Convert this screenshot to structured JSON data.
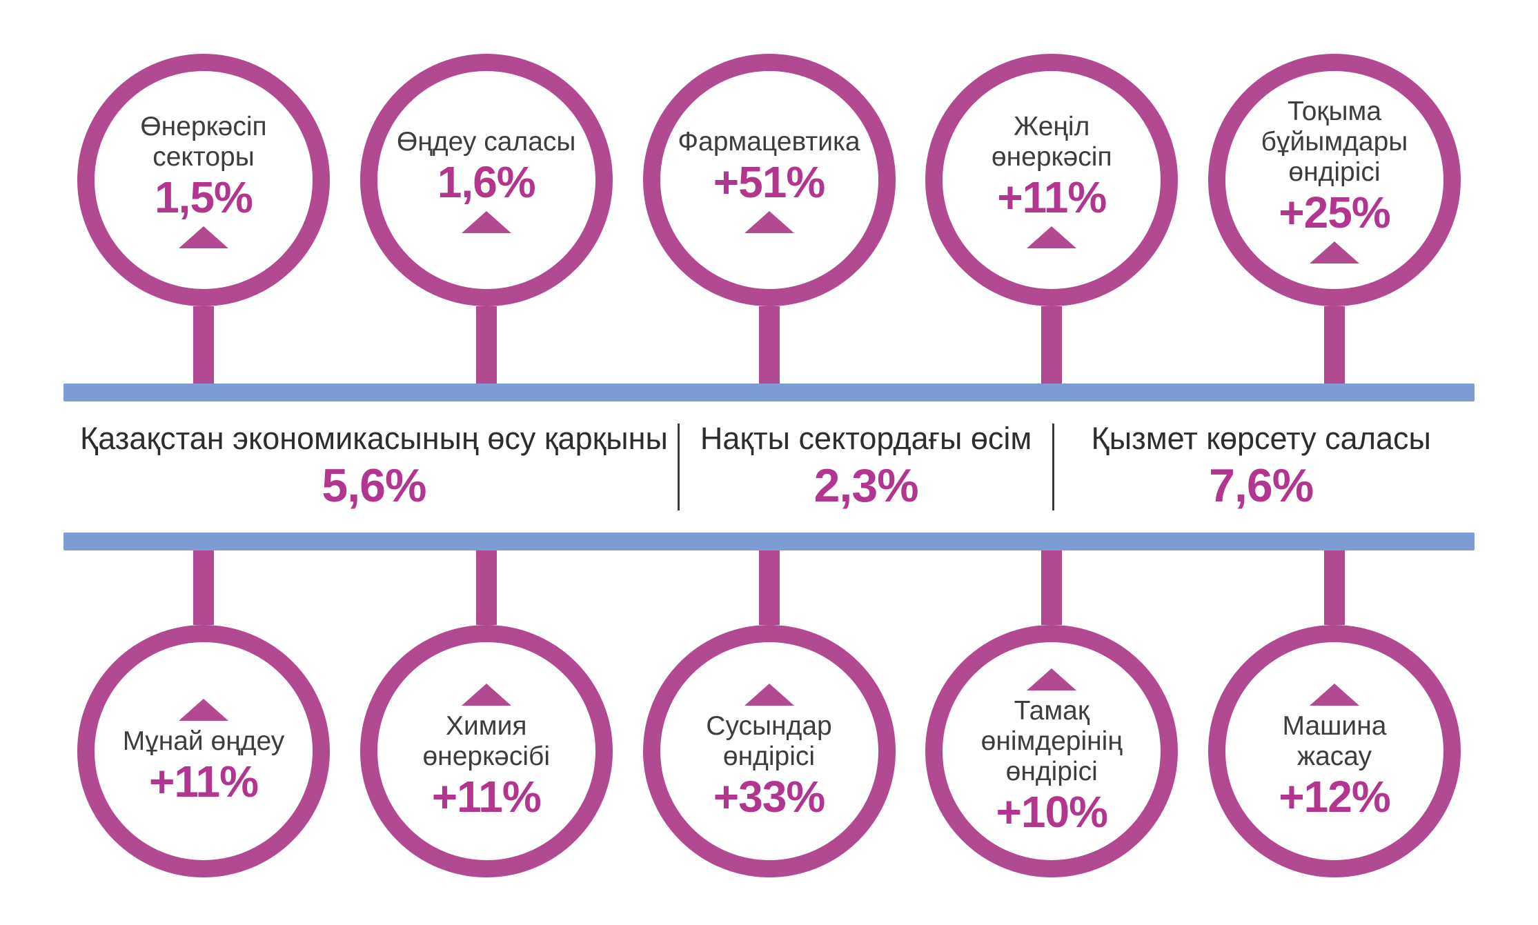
{
  "colors": {
    "accent_magenta": "#b14a90",
    "number_magenta": "#b2368e",
    "bar_blue": "#7e9cd4",
    "label_dark": "#3d3d3d"
  },
  "top_row": [
    {
      "label": "Өнеркәсіп секторы",
      "value": "1,5%"
    },
    {
      "label": "Өңдеу саласы",
      "value": "1,6%"
    },
    {
      "label": "Фармацевтика",
      "value": "+51%"
    },
    {
      "label": "Жеңіл өнеркәсіп",
      "value": "+11%"
    },
    {
      "label": "Тоқыма бұйымдары өндірісі",
      "value": "+25%"
    }
  ],
  "middle": [
    {
      "label": "Қазақстан экономикасының өсу қарқыны",
      "value": "5,6%"
    },
    {
      "label": "Нақты сектордағы өсім",
      "value": "2,3%"
    },
    {
      "label": "Қызмет көрсету саласы",
      "value": "7,6%"
    }
  ],
  "bottom_row": [
    {
      "label": "Мұнай өңдеу",
      "value": "+11%"
    },
    {
      "label": "Химия өнеркәсібі",
      "value": "+11%"
    },
    {
      "label": "Сусындар өндірісі",
      "value": "+33%"
    },
    {
      "label": "Тамақ өнімдерінің өндірісі",
      "value": "+10%"
    },
    {
      "label": "Машина жасау",
      "value": "+12%"
    }
  ],
  "chart_data": {
    "type": "table",
    "title": "Қазақстан экономикасының өсу қарқыны",
    "summary": [
      {
        "label": "Қазақстан экономикасының өсу қарқыны",
        "value_pct": 5.6
      },
      {
        "label": "Нақты сектордағы өсім",
        "value_pct": 2.3
      },
      {
        "label": "Қызмет көрсету саласы",
        "value_pct": 7.6
      }
    ],
    "categories": [
      "Өнеркәсіп секторы",
      "Өңдеу саласы",
      "Фармацевтика",
      "Жеңіл өнеркәсіп",
      "Тоқыма бұйымдары өндірісі",
      "Мұнай өңдеу",
      "Химия өнеркәсібі",
      "Сусындар өндірісі",
      "Тамақ өнімдерінің өндірісі",
      "Машина жасау"
    ],
    "values": [
      1.5,
      1.6,
      51,
      11,
      25,
      11,
      11,
      33,
      10,
      12
    ],
    "value_unit": "%",
    "direction": "up"
  }
}
